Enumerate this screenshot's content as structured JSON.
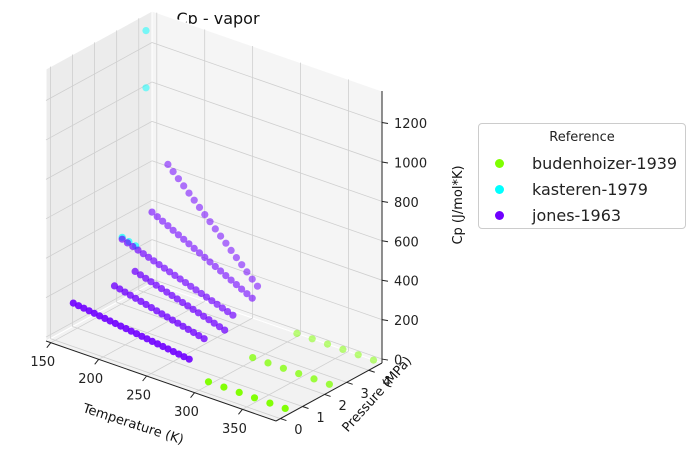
{
  "chart_data": {
    "type": "scatter",
    "title": "Cp - vapor",
    "xlabel": "Temperature (K)",
    "ylabel": "Pressure (MPa)",
    "zlabel": "Cp (J/mol*K)",
    "xlim": [
      145,
      385
    ],
    "ylim": [
      -0.2,
      4.6
    ],
    "zlim": [
      -20,
      1360
    ],
    "x_ticks": [
      "150",
      "200",
      "250",
      "300",
      "350"
    ],
    "y_ticks": [
      "0",
      "1",
      "2",
      "3",
      "4"
    ],
    "z_ticks": [
      "0",
      "200",
      "400",
      "600",
      "800",
      "1000",
      "1200"
    ],
    "legend_title": "Reference",
    "legend_position": "right",
    "grid": true,
    "series": [
      {
        "name": "budenhoizer-1939",
        "color": "#7fff00",
        "groups": [
          {
            "y": 0,
            "z": 40,
            "x": [
              310,
              326,
              342,
              358,
              374,
              390
            ]
          },
          {
            "y": 2,
            "z": 40,
            "x": [
              310,
              326,
              342,
              358,
              374,
              390
            ]
          },
          {
            "y": 4,
            "z": 40,
            "x": [
              310,
              326,
              342,
              358,
              374,
              390
            ]
          }
        ]
      },
      {
        "name": "kasteren-1979",
        "color": "#00ffff",
        "points": [
          {
            "x": 148,
            "y": 4.2,
            "z": 1290
          },
          {
            "x": 148,
            "y": 4.2,
            "z": 1000
          },
          {
            "x": 160,
            "y": 2.6,
            "z": 360
          },
          {
            "x": 167,
            "y": 2.6,
            "z": 350
          },
          {
            "x": 174,
            "y": 2.6,
            "z": 340
          }
        ]
      },
      {
        "name": "jones-1963",
        "color": "#7000ff",
        "groups": [
          {
            "y": 0.6,
            "x_start": 155,
            "x_step": 5.5,
            "count": 23,
            "z_start": 140,
            "z_end": 60
          },
          {
            "y": 1.6,
            "x_start": 175,
            "x_step": 5.5,
            "count": 18,
            "z_start": 200,
            "z_end": 90
          },
          {
            "y": 2.1,
            "x_start": 185,
            "x_step": 5.5,
            "count": 18,
            "z_start": 260,
            "z_end": 120
          },
          {
            "y": 2.6,
            "x_start": 160,
            "x_step": 5.5,
            "count": 22,
            "z_start": 350,
            "z_end": 160
          },
          {
            "y": 3.3,
            "x_start": 175,
            "x_step": 5.5,
            "count": 20,
            "z_start": 470,
            "z_end": 210
          },
          {
            "y": 3.8,
            "x_start": 180,
            "x_step": 5.5,
            "count": 18,
            "z_start": 690,
            "z_end": 230
          }
        ]
      }
    ]
  }
}
